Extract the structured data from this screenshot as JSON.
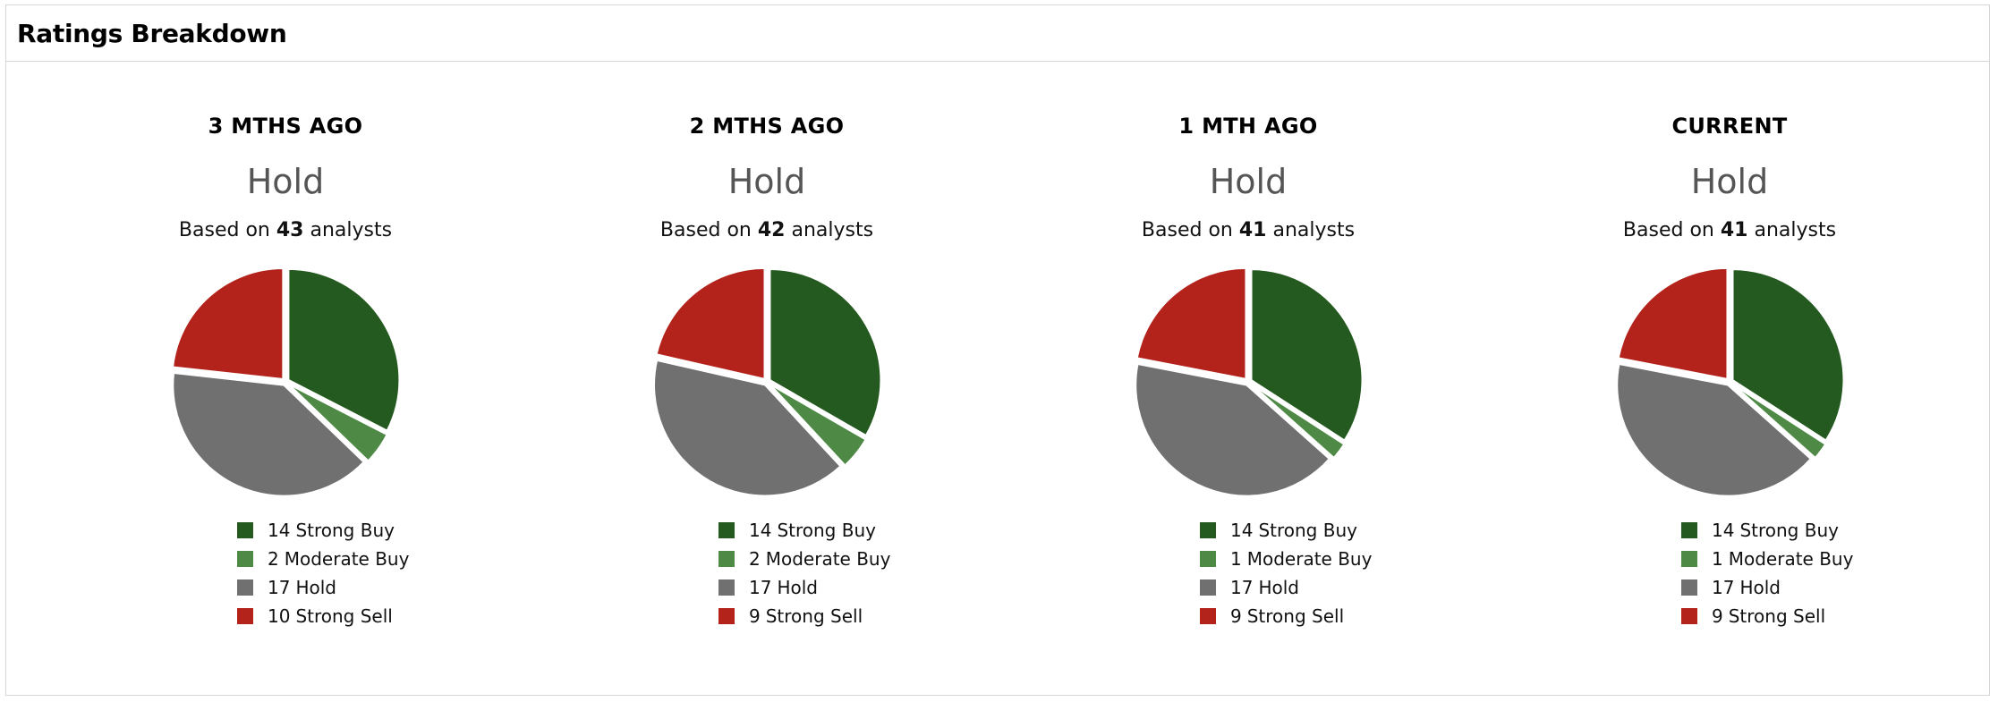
{
  "header": {
    "title": "Ratings Breakdown"
  },
  "labels": {
    "based_on_prefix": "Based on",
    "based_on_suffix": "analysts"
  },
  "colors": {
    "strong_buy": "#245a1f",
    "moderate_buy": "#4e8a45",
    "hold": "#707070",
    "strong_sell": "#b3231b"
  },
  "panels": [
    {
      "period": "3 MTHS AGO",
      "consensus": "Hold",
      "analysts": "43",
      "legend": [
        {
          "count": "14",
          "label": "Strong Buy"
        },
        {
          "count": "2",
          "label": "Moderate Buy"
        },
        {
          "count": "17",
          "label": "Hold"
        },
        {
          "count": "10",
          "label": "Strong Sell"
        }
      ]
    },
    {
      "period": "2 MTHS AGO",
      "consensus": "Hold",
      "analysts": "42",
      "legend": [
        {
          "count": "14",
          "label": "Strong Buy"
        },
        {
          "count": "2",
          "label": "Moderate Buy"
        },
        {
          "count": "17",
          "label": "Hold"
        },
        {
          "count": "9",
          "label": "Strong Sell"
        }
      ]
    },
    {
      "period": "1 MTH AGO",
      "consensus": "Hold",
      "analysts": "41",
      "legend": [
        {
          "count": "14",
          "label": "Strong Buy"
        },
        {
          "count": "1",
          "label": "Moderate Buy"
        },
        {
          "count": "17",
          "label": "Hold"
        },
        {
          "count": "9",
          "label": "Strong Sell"
        }
      ]
    },
    {
      "period": "CURRENT",
      "consensus": "Hold",
      "analysts": "41",
      "legend": [
        {
          "count": "14",
          "label": "Strong Buy"
        },
        {
          "count": "1",
          "label": "Moderate Buy"
        },
        {
          "count": "17",
          "label": "Hold"
        },
        {
          "count": "9",
          "label": "Strong Sell"
        }
      ]
    }
  ],
  "chart_data": [
    {
      "type": "pie",
      "title": "3 MTHS AGO",
      "categories": [
        "Strong Buy",
        "Moderate Buy",
        "Hold",
        "Strong Sell"
      ],
      "values": [
        14,
        2,
        17,
        10
      ],
      "colors": [
        "#245a1f",
        "#4e8a45",
        "#707070",
        "#b3231b"
      ]
    },
    {
      "type": "pie",
      "title": "2 MTHS AGO",
      "categories": [
        "Strong Buy",
        "Moderate Buy",
        "Hold",
        "Strong Sell"
      ],
      "values": [
        14,
        2,
        17,
        9
      ],
      "colors": [
        "#245a1f",
        "#4e8a45",
        "#707070",
        "#b3231b"
      ]
    },
    {
      "type": "pie",
      "title": "1 MTH AGO",
      "categories": [
        "Strong Buy",
        "Moderate Buy",
        "Hold",
        "Strong Sell"
      ],
      "values": [
        14,
        1,
        17,
        9
      ],
      "colors": [
        "#245a1f",
        "#4e8a45",
        "#707070",
        "#b3231b"
      ]
    },
    {
      "type": "pie",
      "title": "CURRENT",
      "categories": [
        "Strong Buy",
        "Moderate Buy",
        "Hold",
        "Strong Sell"
      ],
      "values": [
        14,
        1,
        17,
        9
      ],
      "colors": [
        "#245a1f",
        "#4e8a45",
        "#707070",
        "#b3231b"
      ]
    }
  ]
}
